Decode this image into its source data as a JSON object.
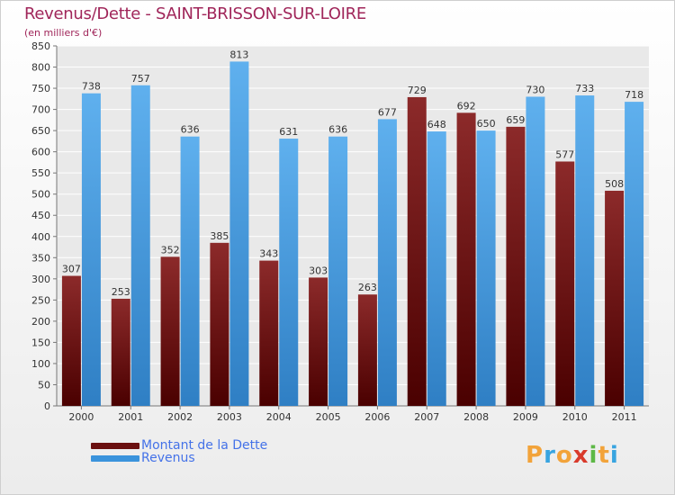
{
  "title": "Revenus/Dette - SAINT-BRISSON-SUR-LOIRE",
  "subtitle": "(en milliers d'€)",
  "chart_data": {
    "type": "bar",
    "categories": [
      "2000",
      "2001",
      "2002",
      "2003",
      "2004",
      "2005",
      "2006",
      "2007",
      "2008",
      "2009",
      "2010",
      "2011"
    ],
    "series": [
      {
        "name": "Montant de la Dette",
        "color": "#7a1a1a",
        "values": [
          307,
          253,
          352,
          385,
          343,
          303,
          263,
          729,
          692,
          659,
          577,
          508
        ]
      },
      {
        "name": "Revenus",
        "color": "#4ea3e6",
        "values": [
          738,
          757,
          636,
          813,
          631,
          636,
          677,
          648,
          650,
          730,
          733,
          718
        ]
      }
    ],
    "ylim": [
      0,
      850
    ],
    "ytick_step": 50,
    "grid": true,
    "legend": "bottom-left"
  },
  "legend": [
    {
      "label": "Montant de la Dette",
      "color": "#6a0f0f"
    },
    {
      "label": "Revenus",
      "color": "#3a93dc"
    }
  ],
  "logo": {
    "letters": [
      {
        "char": "P",
        "color": "#f2a33a"
      },
      {
        "char": "r",
        "color": "#38a4e0"
      },
      {
        "char": "o",
        "color": "#f2a33a"
      },
      {
        "char": "x",
        "color": "#d93a2b"
      },
      {
        "char": "i",
        "color": "#5db846"
      },
      {
        "char": "t",
        "color": "#f2a33a"
      },
      {
        "char": "i",
        "color": "#38a4e0"
      }
    ]
  }
}
